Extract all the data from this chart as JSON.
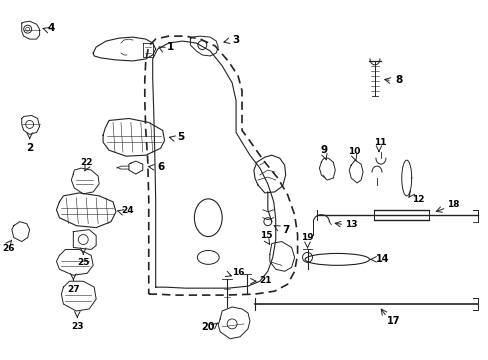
{
  "bg_color": "#ffffff",
  "line_color": "#222222",
  "text_color": "#000000",
  "figsize": [
    4.89,
    3.6
  ],
  "dpi": 100
}
